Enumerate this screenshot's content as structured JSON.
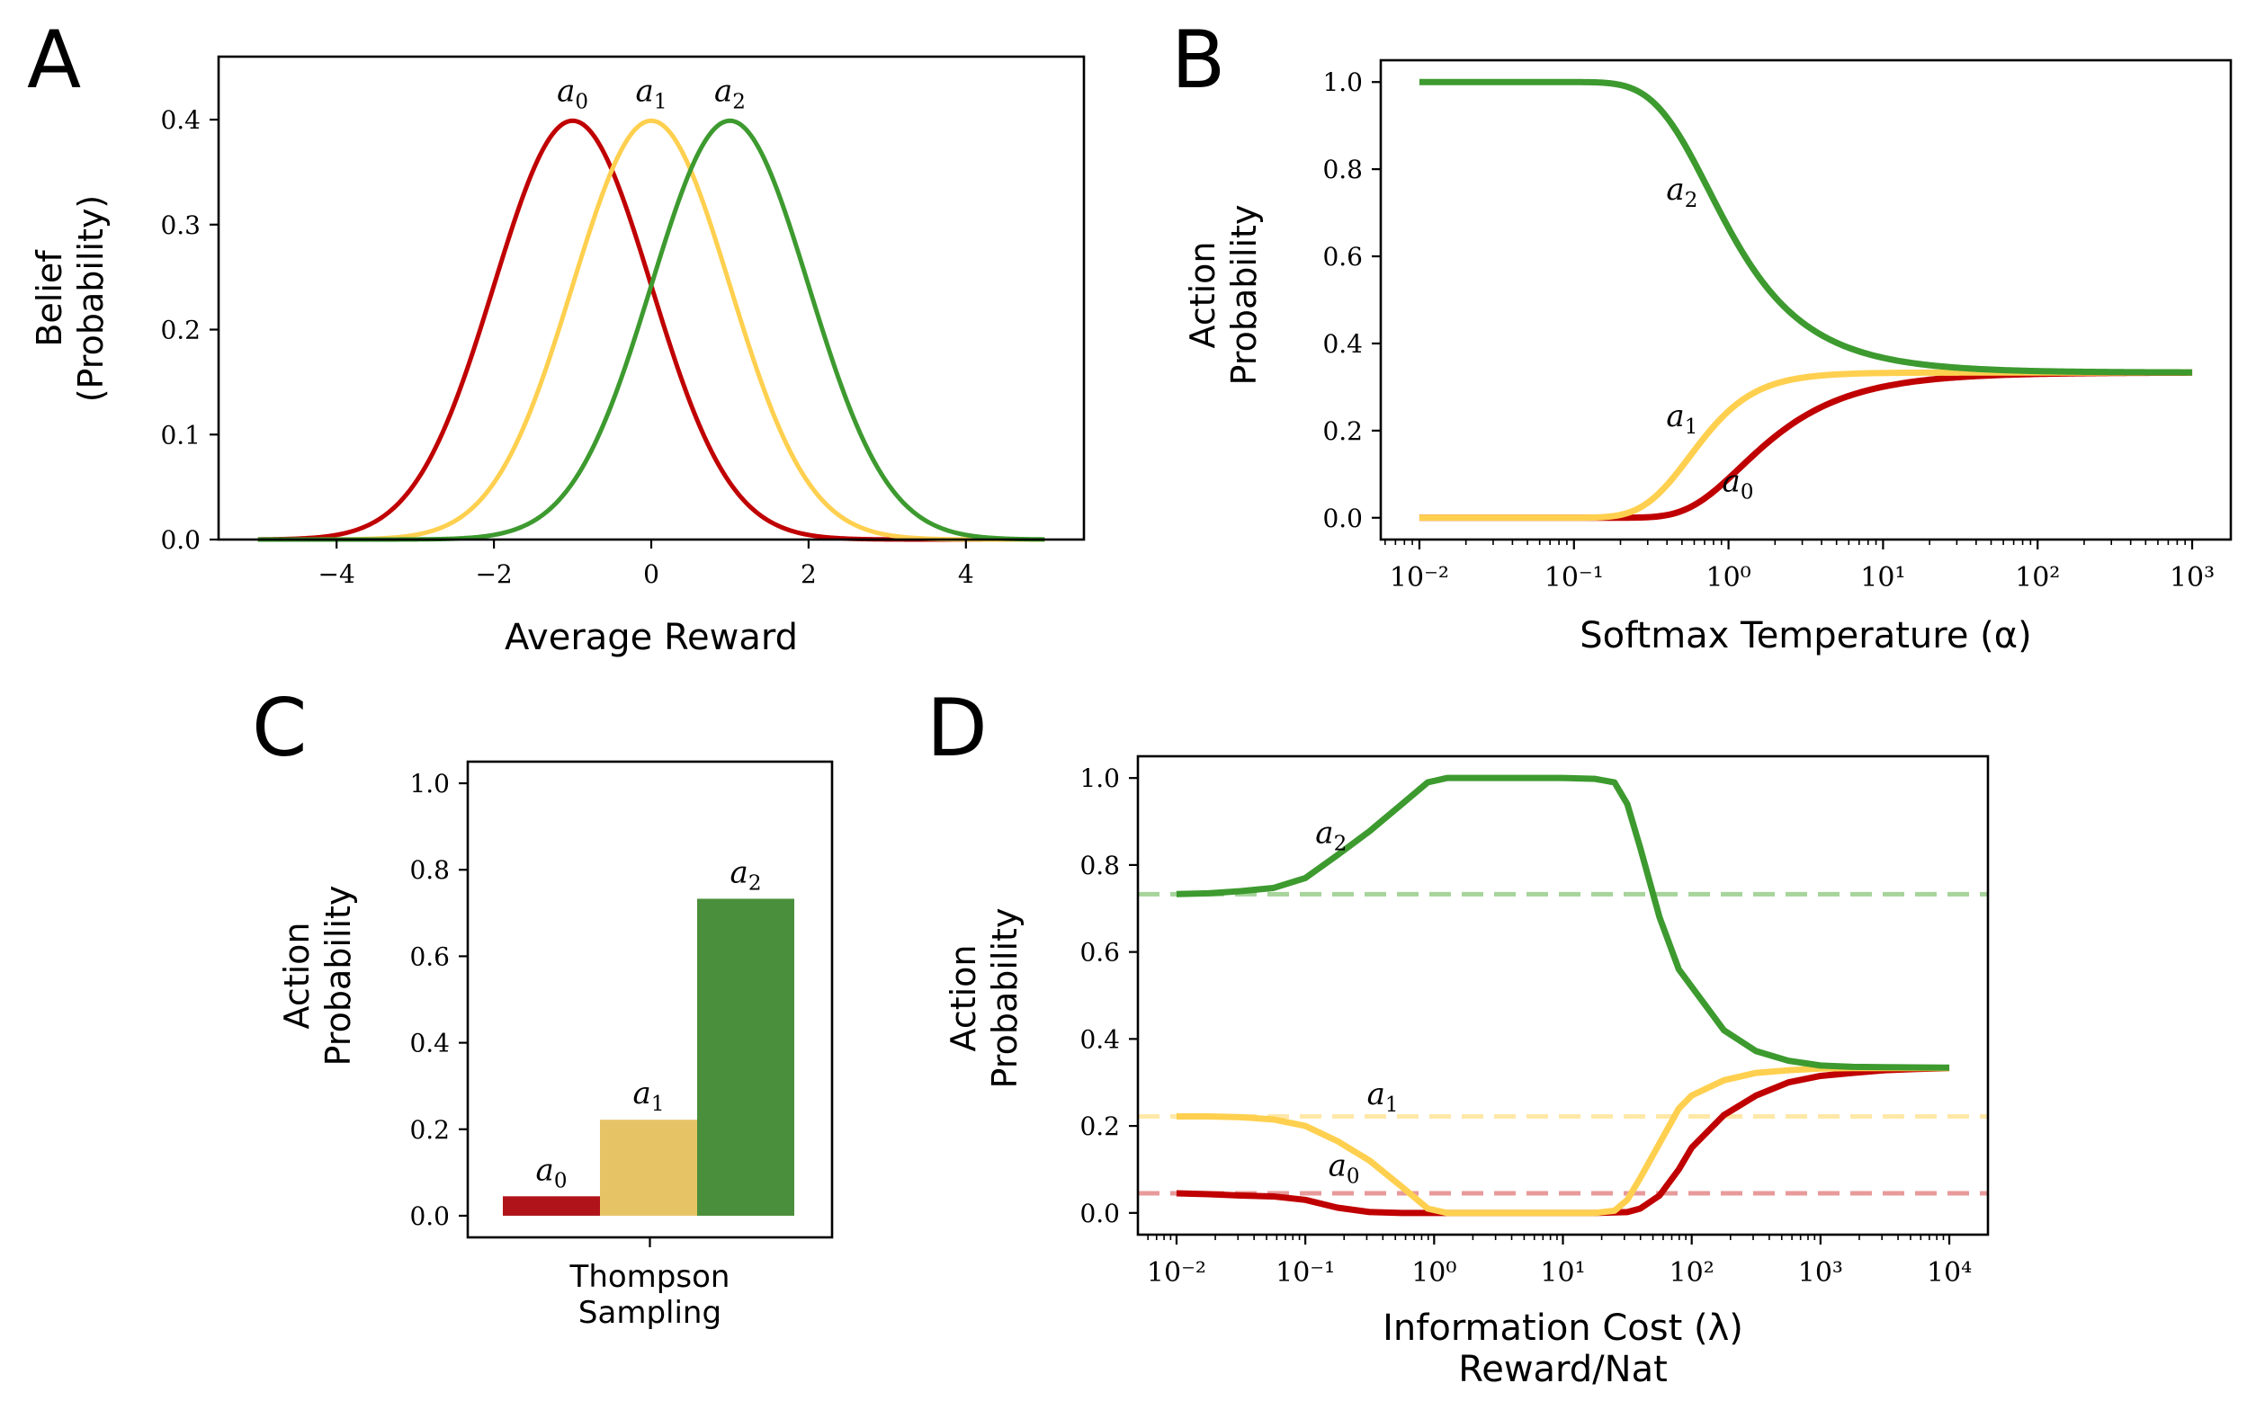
{
  "figure": {
    "panel_labels": [
      "A",
      "B",
      "C",
      "D"
    ],
    "colors": {
      "a0": "#c00000",
      "a1": "#ffd04f",
      "a2": "#3d9a2f",
      "a0_bar": "#b0141a",
      "a1_bar": "#e6c466",
      "a2_bar": "#4a8f3b"
    }
  },
  "chart_data": [
    {
      "panel": "A",
      "type": "line",
      "title": "",
      "xlabel": "Average Reward",
      "ylabel_lines": [
        "Belief",
        "(Probability)"
      ],
      "xlim": [
        -5.5,
        5.5
      ],
      "ylim": [
        0,
        0.46
      ],
      "xticks": [
        -4,
        -2,
        0,
        2,
        4
      ],
      "xtick_labels": [
        "−4",
        "−2",
        "0",
        "2",
        "4"
      ],
      "yticks": [
        0.0,
        0.1,
        0.2,
        0.3,
        0.4
      ],
      "ytick_labels": [
        "0.0",
        "0.1",
        "0.2",
        "0.3",
        "0.4"
      ],
      "x_range": [
        -5,
        5
      ],
      "series": [
        {
          "name": "a0",
          "sub": "0",
          "dist": "normal",
          "mean": -1,
          "sd": 1
        },
        {
          "name": "a1",
          "sub": "1",
          "dist": "normal",
          "mean": 0,
          "sd": 1
        },
        {
          "name": "a2",
          "sub": "2",
          "dist": "normal",
          "mean": 1,
          "sd": 1
        }
      ]
    },
    {
      "panel": "B",
      "type": "line",
      "xscale": "log",
      "xlabel": "Softmax Temperature (α)",
      "ylabel_lines": [
        "Action",
        "Probability"
      ],
      "xlim_log10": [
        -2.25,
        3.25
      ],
      "ylim": [
        -0.05,
        1.05
      ],
      "xticks_log10": [
        -2,
        -1,
        0,
        1,
        2,
        3
      ],
      "xtick_labels": [
        "10⁻²",
        "10⁻¹",
        "10⁰",
        "10¹",
        "10²",
        "10³"
      ],
      "yticks": [
        0.0,
        0.2,
        0.4,
        0.6,
        0.8,
        1.0
      ],
      "ytick_labels": [
        "0.0",
        "0.2",
        "0.4",
        "0.6",
        "0.8",
        "1.0"
      ],
      "x_range_log10": [
        -2,
        3
      ],
      "rewards": [
        -1,
        0,
        1
      ],
      "series": [
        {
          "name": "a0",
          "sub": "0",
          "label_at": [
            1.15,
            0.06
          ]
        },
        {
          "name": "a1",
          "sub": "1",
          "label_at": [
            0.5,
            0.21
          ]
        },
        {
          "name": "a2",
          "sub": "2",
          "label_at": [
            0.5,
            0.73
          ]
        }
      ]
    },
    {
      "panel": "C",
      "type": "bar",
      "xlabel_lines": [
        "Thompson",
        "Sampling"
      ],
      "ylabel_lines": [
        "Action",
        "Probability"
      ],
      "ylim": [
        -0.05,
        1.05
      ],
      "yticks": [
        0.0,
        0.2,
        0.4,
        0.6,
        0.8,
        1.0
      ],
      "ytick_labels": [
        "0.0",
        "0.2",
        "0.4",
        "0.6",
        "0.8",
        "1.0"
      ],
      "categories": [
        "a0",
        "a1",
        "a2"
      ],
      "subs": [
        "0",
        "1",
        "2"
      ],
      "values": [
        0.045,
        0.222,
        0.733
      ]
    },
    {
      "panel": "D",
      "type": "line",
      "xscale": "log",
      "xlabel_lines": [
        "Information Cost (λ)",
        "Reward/Nat"
      ],
      "ylabel_lines": [
        "Action",
        "Probability"
      ],
      "xlim_log10": [
        -2.3,
        4.3
      ],
      "ylim": [
        -0.05,
        1.05
      ],
      "xticks_log10": [
        -2,
        -1,
        0,
        1,
        2,
        3,
        4
      ],
      "xtick_labels": [
        "10⁻²",
        "10⁻¹",
        "10⁰",
        "10¹",
        "10²",
        "10³",
        "10⁴"
      ],
      "yticks": [
        0.0,
        0.2,
        0.4,
        0.6,
        0.8,
        1.0
      ],
      "ytick_labels": [
        "0.0",
        "0.2",
        "0.4",
        "0.6",
        "0.8",
        "1.0"
      ],
      "reference_lines": [
        0.733,
        0.222,
        0.045
      ],
      "series": [
        {
          "name": "a0",
          "sub": "0",
          "label_at": [
            -0.7,
            0.085
          ],
          "x_log10": [
            -2,
            -1.75,
            -1.5,
            -1.25,
            -1,
            -0.75,
            -0.5,
            -0.25,
            0,
            0.25,
            0.5,
            0.75,
            1,
            1.25,
            1.5,
            1.6,
            1.75,
            1.9,
            2,
            2.25,
            2.5,
            2.75,
            3,
            3.25,
            3.5,
            3.75,
            4
          ],
          "y": [
            0.045,
            0.043,
            0.04,
            0.038,
            0.03,
            0.012,
            0.002,
            0,
            0,
            0,
            0,
            0,
            0,
            0,
            0.002,
            0.01,
            0.04,
            0.1,
            0.15,
            0.225,
            0.27,
            0.3,
            0.315,
            0.322,
            0.328,
            0.331,
            0.333
          ]
        },
        {
          "name": "a1",
          "sub": "1",
          "label_at": [
            -0.4,
            0.25
          ],
          "x_log10": [
            -2,
            -1.75,
            -1.5,
            -1.25,
            -1,
            -0.75,
            -0.5,
            -0.25,
            -0.05,
            0.1,
            0.25,
            0.5,
            0.75,
            1,
            1.25,
            1.4,
            1.5,
            1.6,
            1.75,
            1.9,
            2,
            2.25,
            2.5,
            2.75,
            3,
            3.25,
            3.5,
            4
          ],
          "y": [
            0.222,
            0.222,
            0.22,
            0.215,
            0.2,
            0.165,
            0.12,
            0.06,
            0.01,
            0,
            0,
            0,
            0,
            0,
            0,
            0.005,
            0.03,
            0.08,
            0.16,
            0.24,
            0.27,
            0.305,
            0.322,
            0.328,
            0.332,
            0.333,
            0.333,
            0.333
          ]
        },
        {
          "name": "a2",
          "sub": "2",
          "label_at": [
            -0.8,
            0.85
          ],
          "x_log10": [
            -2,
            -1.75,
            -1.5,
            -1.25,
            -1,
            -0.75,
            -0.5,
            -0.25,
            -0.05,
            0.1,
            0.25,
            0.5,
            0.75,
            1,
            1.25,
            1.4,
            1.5,
            1.6,
            1.75,
            1.9,
            2,
            2.25,
            2.5,
            2.75,
            3,
            3.25,
            3.5,
            4
          ],
          "y": [
            0.733,
            0.735,
            0.74,
            0.747,
            0.77,
            0.823,
            0.878,
            0.94,
            0.99,
            1.0,
            1.0,
            1.0,
            1.0,
            1.0,
            0.998,
            0.99,
            0.94,
            0.84,
            0.68,
            0.56,
            0.52,
            0.42,
            0.372,
            0.35,
            0.339,
            0.336,
            0.335,
            0.334
          ]
        }
      ]
    }
  ]
}
